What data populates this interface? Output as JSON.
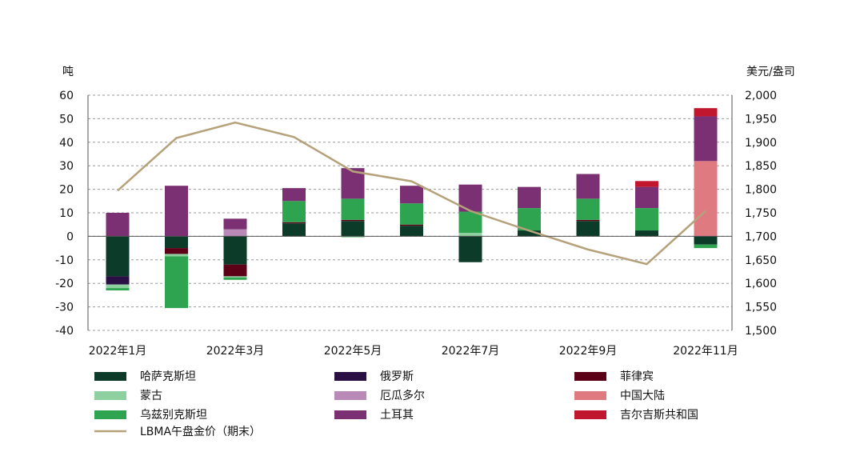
{
  "chart_data": {
    "type": "bar",
    "stacked": true,
    "left_axis_label": "吨",
    "right_axis_label": "美元/盎司",
    "left_ylim": [
      -40,
      60
    ],
    "left_ticks": [
      60,
      50,
      40,
      30,
      20,
      10,
      0,
      -10,
      -20,
      -30,
      -40
    ],
    "right_ylim": [
      1500,
      2000
    ],
    "right_ticks": [
      "2,000",
      "1,950",
      "1,900",
      "1,850",
      "1,800",
      "1,750",
      "1,700",
      "1,650",
      "1,600",
      "1,550",
      "1,500"
    ],
    "grid": true,
    "categories": [
      "2022-01",
      "2022-02",
      "2022-03",
      "2022-04",
      "2022-05",
      "2022-06",
      "2022-07",
      "2022-08",
      "2022-09",
      "2022-10",
      "2022-11"
    ],
    "x_tick_labels": [
      {
        "index": 0,
        "label": "2022年1月"
      },
      {
        "index": 2,
        "label": "2022年3月"
      },
      {
        "index": 4,
        "label": "2022年5月"
      },
      {
        "index": 6,
        "label": "2022年7月"
      },
      {
        "index": 8,
        "label": "2022年9月"
      },
      {
        "index": 10,
        "label": "2022年11月"
      }
    ],
    "series": [
      {
        "name": "哈萨克斯坦",
        "color": "#0d3b2a",
        "values": [
          -17,
          -5,
          -12,
          5.5,
          6.5,
          4.5,
          -11,
          2.5,
          6.5,
          2.5,
          -3.5
        ]
      },
      {
        "name": "俄罗斯",
        "color": "#2a0f45",
        "values": [
          -3.5,
          0,
          0,
          0,
          0,
          0,
          0,
          0,
          0,
          0,
          0
        ]
      },
      {
        "name": "菲律宾",
        "color": "#5c0018",
        "values": [
          0,
          -2.5,
          -5,
          0.5,
          0.5,
          0.5,
          0,
          0,
          0.5,
          0,
          0
        ]
      },
      {
        "name": "蒙古",
        "color": "#8fd0a0",
        "values": [
          -1.5,
          -1,
          -0.5,
          0,
          -0.5,
          0,
          1.5,
          0,
          0,
          0,
          0
        ]
      },
      {
        "name": "厄瓜多尔",
        "color": "#b98ab8",
        "values": [
          0,
          0,
          3,
          0,
          0,
          0,
          0,
          0,
          0,
          0,
          0
        ]
      },
      {
        "name": "中国大陆",
        "color": "#de7a80",
        "values": [
          0,
          0,
          0,
          0,
          0,
          0,
          0,
          0,
          0,
          0,
          32
        ]
      },
      {
        "name": "乌兹别克斯坦",
        "color": "#2fa450",
        "values": [
          -1,
          -22,
          -1,
          9,
          9,
          9,
          9,
          9.5,
          9,
          9.5,
          -1.5
        ]
      },
      {
        "name": "土耳其",
        "color": "#7a3072",
        "values": [
          10,
          21.5,
          4.5,
          5.5,
          13,
          7.5,
          11.5,
          9,
          10.5,
          9,
          19
        ]
      },
      {
        "name": "吉尔吉斯共和国",
        "color": "#c0172e",
        "values": [
          0,
          0,
          0,
          0,
          0,
          0,
          0,
          0,
          0,
          2.5,
          3.5
        ]
      }
    ],
    "line": {
      "name": "LBMA午盘金价（期末）",
      "color": "#b5a27a",
      "axis": "right",
      "values": [
        1797,
        1909,
        1942,
        1911,
        1838,
        1817,
        1754,
        1712,
        1672,
        1641,
        1754
      ]
    },
    "legend": {
      "placement": "bottom",
      "columns": [
        [
          "哈萨克斯坦",
          "蒙古",
          "乌兹别克斯坦",
          "LBMA午盘金价（期末）"
        ],
        [
          "俄罗斯",
          "厄瓜多尔",
          "土耳其"
        ],
        [
          "菲律宾",
          "中国大陆",
          "吉尔吉斯共和国"
        ]
      ]
    }
  }
}
